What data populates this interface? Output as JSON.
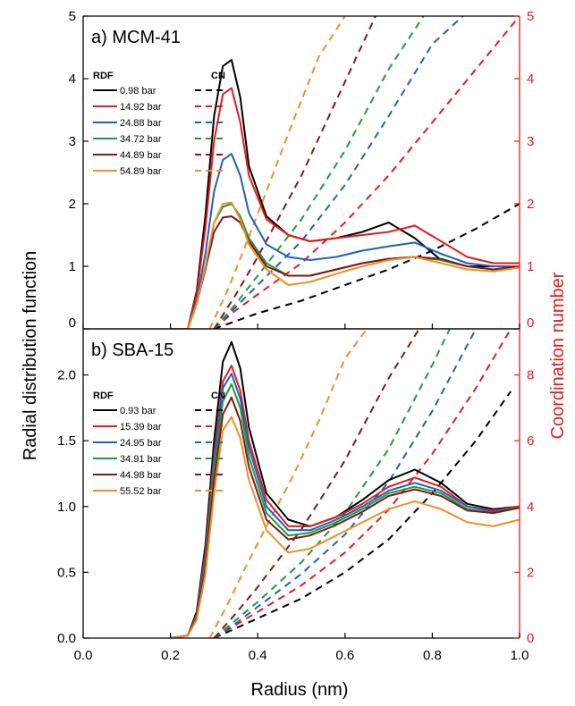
{
  "chart_data": [
    {
      "type": "line",
      "title": "a) MCM-41",
      "xlabel": "Radius (nm)",
      "ylabel": "Radial distribution function",
      "y2label": "Coordination number",
      "xlim": [
        0.0,
        1.0
      ],
      "ylim": [
        0,
        5
      ],
      "y2lim": [
        0,
        5
      ],
      "y_ticks": [
        "0",
        "1",
        "2",
        "3",
        "4",
        "5"
      ],
      "y2_ticks": [
        "0",
        "1",
        "2",
        "3",
        "4",
        "5"
      ],
      "legend": {
        "rdf_header": "RDF",
        "cn_header": "CN",
        "placement": "left"
      },
      "rdf_series": [
        {
          "name": "0.98 bar",
          "color": "#000000",
          "x": [
            0.2,
            0.24,
            0.26,
            0.28,
            0.3,
            0.32,
            0.34,
            0.36,
            0.38,
            0.42,
            0.47,
            0.52,
            0.58,
            0.64,
            0.7,
            0.76,
            0.82,
            0.88,
            0.94,
            1.0
          ],
          "y": [
            0,
            0,
            0.6,
            1.8,
            3.4,
            4.2,
            4.3,
            3.7,
            2.6,
            1.8,
            1.5,
            1.4,
            1.45,
            1.55,
            1.7,
            1.45,
            1.1,
            1.0,
            1.0,
            1.0
          ]
        },
        {
          "name": "14.92 bar",
          "color": "#e41a1c",
          "x": [
            0.2,
            0.24,
            0.26,
            0.28,
            0.3,
            0.32,
            0.34,
            0.36,
            0.38,
            0.42,
            0.47,
            0.52,
            0.58,
            0.64,
            0.7,
            0.76,
            0.82,
            0.88,
            0.94,
            1.0
          ],
          "y": [
            0,
            0,
            0.55,
            1.6,
            3.0,
            3.75,
            3.85,
            3.3,
            2.45,
            1.75,
            1.5,
            1.4,
            1.45,
            1.5,
            1.55,
            1.65,
            1.4,
            1.15,
            1.05,
            1.05
          ]
        },
        {
          "name": "24.88 bar",
          "color": "#1f5fbf",
          "x": [
            0.2,
            0.24,
            0.26,
            0.28,
            0.3,
            0.32,
            0.34,
            0.36,
            0.38,
            0.42,
            0.47,
            0.52,
            0.58,
            0.64,
            0.7,
            0.76,
            0.82,
            0.88,
            0.94,
            1.0
          ],
          "y": [
            0,
            0,
            0.45,
            1.2,
            2.2,
            2.7,
            2.8,
            2.45,
            1.85,
            1.35,
            1.15,
            1.1,
            1.15,
            1.25,
            1.32,
            1.38,
            1.2,
            1.05,
            1.0,
            1.0
          ]
        },
        {
          "name": "34.72 bar",
          "color": "#1f9a3c",
          "x": [
            0.2,
            0.24,
            0.26,
            0.28,
            0.3,
            0.32,
            0.34,
            0.36,
            0.38,
            0.42,
            0.47,
            0.52,
            0.58,
            0.64,
            0.7,
            0.76,
            0.82,
            0.88,
            0.94,
            1.0
          ],
          "y": [
            0,
            0,
            0.4,
            1.0,
            1.7,
            1.95,
            2.0,
            1.8,
            1.45,
            1.05,
            0.85,
            0.85,
            0.95,
            1.05,
            1.12,
            1.15,
            1.1,
            1.0,
            0.95,
            1.0
          ]
        },
        {
          "name": "44.89 bar",
          "color": "#7b1a1a",
          "x": [
            0.2,
            0.24,
            0.26,
            0.28,
            0.3,
            0.32,
            0.34,
            0.36,
            0.38,
            0.42,
            0.47,
            0.52,
            0.58,
            0.64,
            0.7,
            0.76,
            0.82,
            0.88,
            0.94,
            1.0
          ],
          "y": [
            0,
            0,
            0.4,
            0.95,
            1.55,
            1.78,
            1.8,
            1.7,
            1.4,
            1.0,
            0.85,
            0.85,
            0.95,
            1.05,
            1.12,
            1.15,
            1.12,
            1.0,
            0.95,
            1.0
          ]
        },
        {
          "name": "54.89 bar",
          "color": "#f28c28",
          "x": [
            0.2,
            0.24,
            0.26,
            0.28,
            0.3,
            0.32,
            0.34,
            0.36,
            0.38,
            0.42,
            0.47,
            0.52,
            0.58,
            0.64,
            0.7,
            0.76,
            0.82,
            0.88,
            0.94,
            1.0
          ],
          "y": [
            0,
            0,
            0.4,
            1.0,
            1.7,
            2.0,
            2.02,
            1.75,
            1.35,
            0.95,
            0.7,
            0.75,
            0.88,
            1.0,
            1.1,
            1.15,
            1.05,
            0.95,
            0.92,
            0.98
          ]
        }
      ],
      "cn_series": [
        {
          "name": "0.98 bar",
          "color": "#000000",
          "x": [
            0.3,
            0.34,
            0.4,
            0.5,
            0.6,
            0.7,
            0.8,
            0.9,
            1.0
          ],
          "y": [
            0.0,
            0.1,
            0.25,
            0.45,
            0.7,
            0.95,
            1.25,
            1.6,
            2.0
          ]
        },
        {
          "name": "14.92 bar",
          "color": "#e41a1c",
          "x": [
            0.3,
            0.35,
            0.4,
            0.5,
            0.6,
            0.7,
            0.8,
            0.9,
            1.0
          ],
          "y": [
            0.0,
            0.3,
            0.55,
            1.05,
            1.7,
            2.45,
            3.3,
            4.15,
            5.0
          ]
        },
        {
          "name": "24.88 bar",
          "color": "#1f5fbf",
          "x": [
            0.3,
            0.35,
            0.4,
            0.5,
            0.6,
            0.7,
            0.8,
            0.87
          ],
          "y": [
            0.0,
            0.35,
            0.7,
            1.4,
            2.3,
            3.4,
            4.55,
            5.0
          ]
        },
        {
          "name": "34.72 bar",
          "color": "#1f9a3c",
          "x": [
            0.3,
            0.35,
            0.4,
            0.5,
            0.6,
            0.7,
            0.78
          ],
          "y": [
            0.0,
            0.4,
            0.85,
            1.75,
            2.85,
            4.15,
            5.0
          ]
        },
        {
          "name": "44.89 bar",
          "color": "#7b1a1a",
          "x": [
            0.3,
            0.35,
            0.4,
            0.5,
            0.6,
            0.67
          ],
          "y": [
            0.0,
            0.55,
            1.15,
            2.45,
            3.95,
            5.0
          ]
        },
        {
          "name": "54.89 bar",
          "color": "#f28c28",
          "x": [
            0.29,
            0.33,
            0.37,
            0.42,
            0.48,
            0.54,
            0.6
          ],
          "y": [
            0.0,
            0.6,
            1.3,
            2.2,
            3.3,
            4.35,
            5.0
          ]
        }
      ]
    },
    {
      "type": "line",
      "title": "b) SBA-15",
      "xlabel": "Radius (nm)",
      "ylabel": "Radial distribution function",
      "y2label": "Coordination number",
      "xlim": [
        0.0,
        1.0
      ],
      "x_ticks": [
        "0.0",
        "0.2",
        "0.4",
        "0.6",
        "0.8",
        "1.0"
      ],
      "ylim": [
        0,
        2.35
      ],
      "y2lim": [
        0,
        9.4
      ],
      "y_ticks": [
        "0.0",
        "0.5",
        "1.0",
        "1.5",
        "2.0"
      ],
      "y2_ticks": [
        "0",
        "2",
        "4",
        "6",
        "8"
      ],
      "legend": {
        "rdf_header": "RDF",
        "cn_header": "CN",
        "placement": "left"
      },
      "rdf_series": [
        {
          "name": "0.93 bar",
          "color": "#000000",
          "x": [
            0.2,
            0.24,
            0.26,
            0.28,
            0.3,
            0.32,
            0.34,
            0.36,
            0.38,
            0.42,
            0.47,
            0.52,
            0.58,
            0.64,
            0.7,
            0.76,
            0.82,
            0.88,
            0.94,
            1.0
          ],
          "y": [
            0,
            0.02,
            0.2,
            0.7,
            1.5,
            2.1,
            2.25,
            2.05,
            1.6,
            1.1,
            0.9,
            0.85,
            0.92,
            1.05,
            1.2,
            1.28,
            1.18,
            1.02,
            0.98,
            1.0
          ]
        },
        {
          "name": "15.39 bar",
          "color": "#e41a1c",
          "x": [
            0.2,
            0.24,
            0.26,
            0.28,
            0.3,
            0.32,
            0.34,
            0.36,
            0.38,
            0.42,
            0.47,
            0.52,
            0.58,
            0.64,
            0.7,
            0.76,
            0.82,
            0.88,
            0.94,
            1.0
          ],
          "y": [
            0,
            0.02,
            0.18,
            0.65,
            1.4,
            1.95,
            2.07,
            1.88,
            1.5,
            1.05,
            0.85,
            0.85,
            0.92,
            1.02,
            1.15,
            1.22,
            1.15,
            1.0,
            0.97,
            1.0
          ]
        },
        {
          "name": "24.95 bar",
          "color": "#1f5fbf",
          "x": [
            0.2,
            0.24,
            0.26,
            0.28,
            0.3,
            0.32,
            0.34,
            0.36,
            0.38,
            0.42,
            0.47,
            0.52,
            0.58,
            0.64,
            0.7,
            0.76,
            0.82,
            0.88,
            0.94,
            1.0
          ],
          "y": [
            0,
            0.02,
            0.17,
            0.6,
            1.35,
            1.9,
            2.01,
            1.82,
            1.45,
            1.0,
            0.82,
            0.82,
            0.9,
            1.0,
            1.12,
            1.18,
            1.12,
            1.0,
            0.96,
            1.0
          ]
        },
        {
          "name": "34.91 bar",
          "color": "#1f9a3c",
          "x": [
            0.2,
            0.24,
            0.26,
            0.28,
            0.3,
            0.32,
            0.34,
            0.36,
            0.38,
            0.42,
            0.47,
            0.52,
            0.58,
            0.64,
            0.7,
            0.76,
            0.82,
            0.88,
            0.94,
            1.0
          ],
          "y": [
            0,
            0.02,
            0.16,
            0.55,
            1.28,
            1.8,
            1.93,
            1.75,
            1.38,
            0.95,
            0.78,
            0.8,
            0.88,
            0.98,
            1.1,
            1.15,
            1.1,
            0.98,
            0.95,
            1.0
          ]
        },
        {
          "name": "44.98 bar",
          "color": "#7b1a1a",
          "x": [
            0.2,
            0.24,
            0.26,
            0.28,
            0.3,
            0.32,
            0.34,
            0.36,
            0.38,
            0.42,
            0.47,
            0.52,
            0.58,
            0.64,
            0.7,
            0.76,
            0.82,
            0.88,
            0.94,
            1.0
          ],
          "y": [
            0,
            0.02,
            0.15,
            0.52,
            1.2,
            1.7,
            1.83,
            1.65,
            1.3,
            0.9,
            0.75,
            0.78,
            0.86,
            0.96,
            1.08,
            1.13,
            1.08,
            0.97,
            0.95,
            0.99
          ]
        },
        {
          "name": "55.52 bar",
          "color": "#f28c28",
          "x": [
            0.2,
            0.24,
            0.26,
            0.28,
            0.3,
            0.32,
            0.34,
            0.36,
            0.38,
            0.42,
            0.47,
            0.52,
            0.58,
            0.64,
            0.7,
            0.76,
            0.82,
            0.88,
            0.94,
            1.0
          ],
          "y": [
            0,
            0.02,
            0.14,
            0.48,
            1.1,
            1.58,
            1.68,
            1.52,
            1.2,
            0.82,
            0.65,
            0.68,
            0.78,
            0.88,
            0.98,
            1.04,
            0.98,
            0.88,
            0.85,
            0.9
          ]
        }
      ],
      "cn_series": [
        {
          "name": "0.93 bar",
          "color": "#000000",
          "x": [
            0.3,
            0.35,
            0.4,
            0.5,
            0.6,
            0.7,
            0.8,
            0.9,
            0.98
          ],
          "y": [
            0.0,
            0.3,
            0.6,
            1.2,
            2.0,
            3.0,
            4.4,
            6.0,
            7.5
          ]
        },
        {
          "name": "15.39 bar",
          "color": "#e41a1c",
          "x": [
            0.3,
            0.35,
            0.4,
            0.5,
            0.6,
            0.7,
            0.8,
            0.9,
            0.98
          ],
          "y": [
            0.0,
            0.4,
            0.8,
            1.6,
            2.6,
            3.9,
            5.6,
            7.6,
            9.4
          ]
        },
        {
          "name": "24.95 bar",
          "color": "#1f5fbf",
          "x": [
            0.3,
            0.35,
            0.4,
            0.5,
            0.6,
            0.7,
            0.8,
            0.9
          ],
          "y": [
            0.0,
            0.45,
            0.95,
            1.95,
            3.15,
            4.75,
            6.9,
            9.4
          ]
        },
        {
          "name": "34.91 bar",
          "color": "#1f9a3c",
          "x": [
            0.3,
            0.35,
            0.4,
            0.5,
            0.6,
            0.7,
            0.8,
            0.84
          ],
          "y": [
            0.0,
            0.55,
            1.1,
            2.3,
            3.8,
            5.75,
            8.3,
            9.4
          ]
        },
        {
          "name": "44.98 bar",
          "color": "#7b1a1a",
          "x": [
            0.3,
            0.35,
            0.4,
            0.5,
            0.6,
            0.7,
            0.77
          ],
          "y": [
            0.0,
            0.75,
            1.55,
            3.3,
            5.4,
            7.9,
            9.4
          ]
        },
        {
          "name": "55.52 bar",
          "color": "#f28c28",
          "x": [
            0.29,
            0.33,
            0.37,
            0.42,
            0.48,
            0.54,
            0.6,
            0.65
          ],
          "y": [
            0.0,
            1.0,
            2.1,
            3.4,
            4.9,
            6.6,
            8.5,
            9.4
          ]
        }
      ]
    }
  ]
}
